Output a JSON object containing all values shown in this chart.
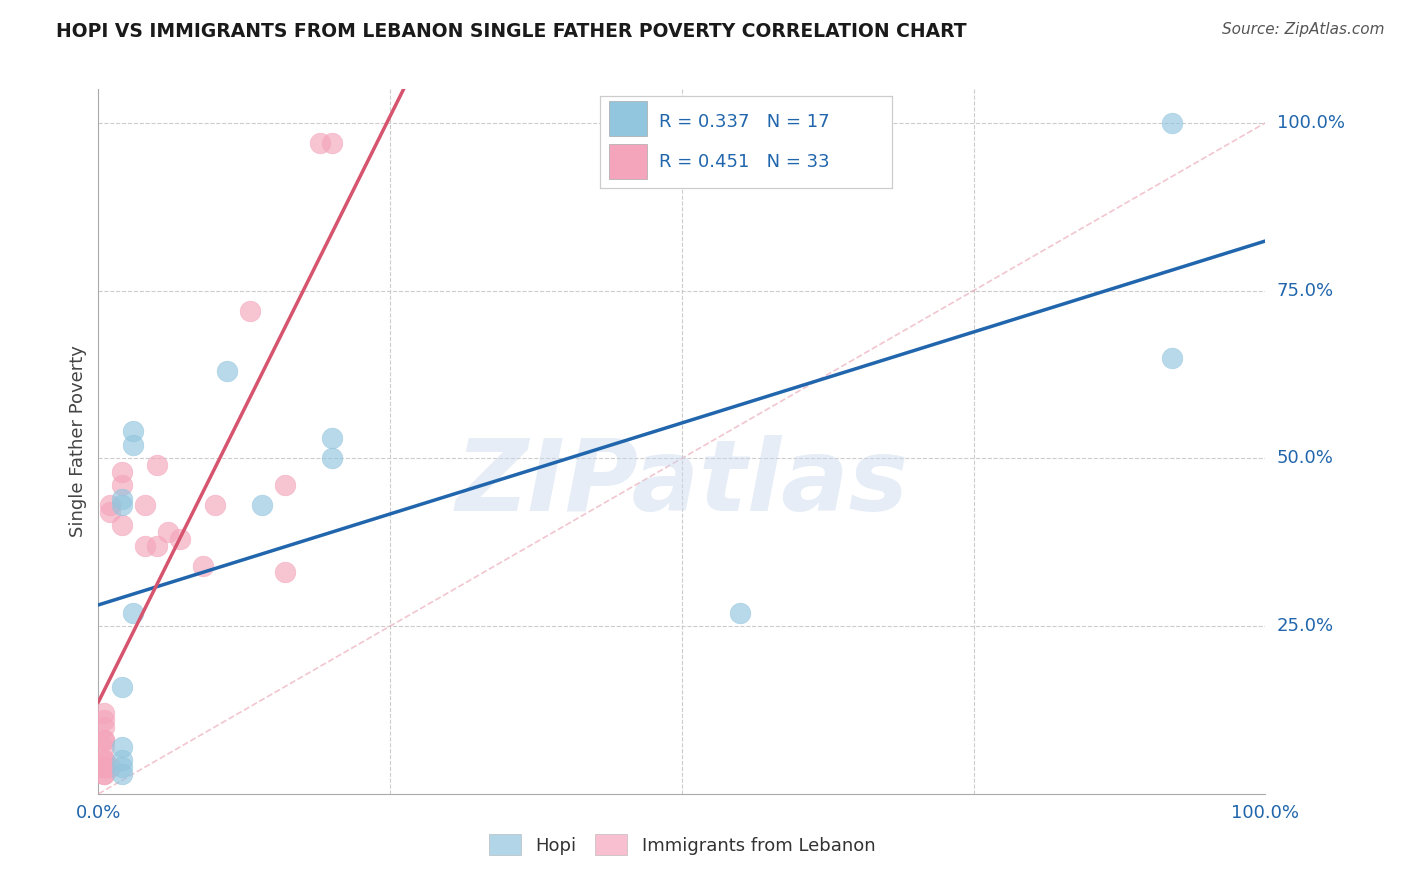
{
  "title": "HOPI VS IMMIGRANTS FROM LEBANON SINGLE FATHER POVERTY CORRELATION CHART",
  "source": "Source: ZipAtlas.com",
  "ylabel": "Single Father Poverty",
  "xlim": [
    0.0,
    1.0
  ],
  "ylim": [
    0.0,
    1.05
  ],
  "hopi_color": "#92c5de",
  "hopi_line_color": "#2166ac",
  "lebanon_color": "#f4a5bb",
  "lebanon_line_color": "#d6546e",
  "hopi_R": 0.337,
  "hopi_N": 17,
  "lebanon_R": 0.451,
  "lebanon_N": 33,
  "hopi_x": [
    0.02,
    0.02,
    0.02,
    0.02,
    0.02,
    0.02,
    0.02,
    0.03,
    0.03,
    0.03,
    0.11,
    0.14,
    0.2,
    0.2,
    0.55,
    0.92,
    0.92
  ],
  "hopi_y": [
    0.03,
    0.04,
    0.05,
    0.07,
    0.43,
    0.44,
    0.16,
    0.27,
    0.52,
    0.54,
    0.63,
    0.43,
    0.5,
    0.53,
    0.27,
    0.65,
    1.0
  ],
  "lebanon_x": [
    0.005,
    0.005,
    0.005,
    0.005,
    0.005,
    0.005,
    0.005,
    0.005,
    0.005,
    0.005,
    0.005,
    0.005,
    0.005,
    0.005,
    0.01,
    0.01,
    0.01,
    0.02,
    0.02,
    0.02,
    0.04,
    0.04,
    0.05,
    0.05,
    0.06,
    0.07,
    0.09,
    0.1,
    0.13,
    0.16,
    0.16,
    0.2,
    0.19
  ],
  "lebanon_y": [
    0.03,
    0.03,
    0.04,
    0.04,
    0.04,
    0.04,
    0.05,
    0.05,
    0.07,
    0.08,
    0.08,
    0.1,
    0.11,
    0.12,
    0.04,
    0.42,
    0.43,
    0.4,
    0.46,
    0.48,
    0.37,
    0.43,
    0.37,
    0.49,
    0.39,
    0.38,
    0.34,
    0.43,
    0.72,
    0.46,
    0.33,
    0.97,
    0.97
  ],
  "watermark": "ZIPatlas",
  "background_color": "#ffffff",
  "grid_color": "#cccccc",
  "ytick_positions": [
    0.25,
    0.5,
    0.75,
    1.0
  ],
  "ytick_labels": [
    "25.0%",
    "50.0%",
    "75.0%",
    "100.0%"
  ]
}
